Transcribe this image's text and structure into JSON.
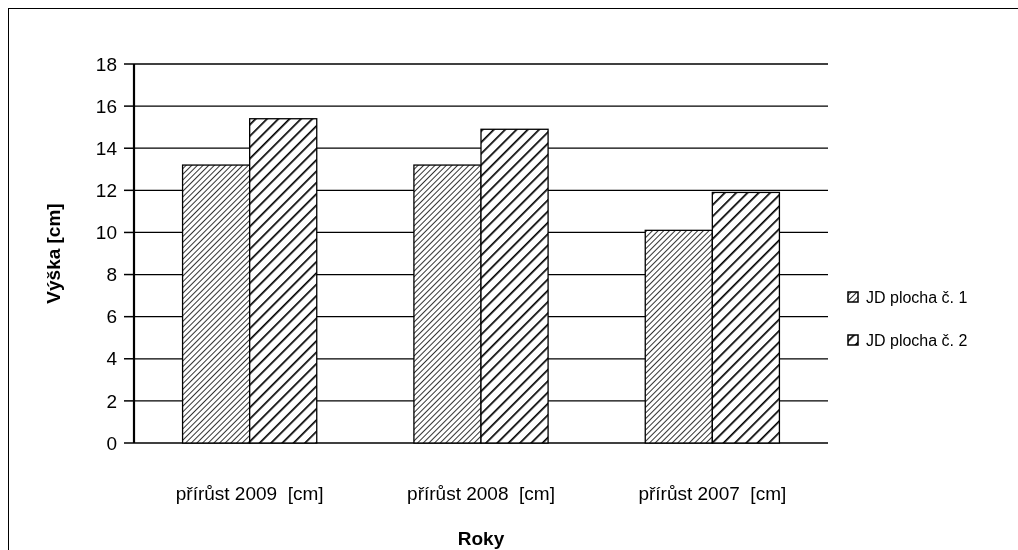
{
  "chart_data": {
    "type": "bar",
    "xlabel": "Roky",
    "ylabel": "Výška [cm]",
    "categories": [
      "přírůst 2009  [cm]",
      "přírůst 2008  [cm]",
      "přírůst 2007  [cm]"
    ],
    "series": [
      {
        "name": "JD plocha č. 1",
        "color": "#000000",
        "values": [
          13.2,
          13.2,
          10.1
        ]
      },
      {
        "name": "JD plocha č. 2",
        "color": "#000000",
        "values": [
          15.4,
          14.9,
          11.9
        ]
      }
    ],
    "ylim": [
      0,
      18
    ],
    "yticks": [
      0,
      2,
      4,
      6,
      8,
      10,
      12,
      14,
      16,
      18
    ],
    "grid": "y",
    "legend": "right"
  }
}
